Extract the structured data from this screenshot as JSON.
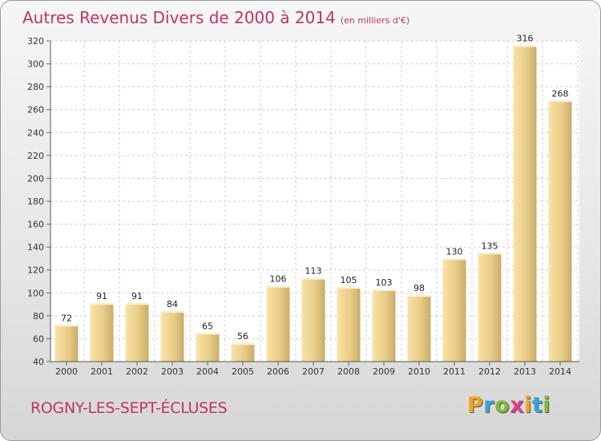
{
  "title": "Autres Revenus Divers de 2000 à 2014",
  "subtitle": "(en milliers d'€)",
  "commune": "ROGNY-LES-SEPT-ÉCLUSES",
  "logo": {
    "letters": [
      "P",
      "r",
      "o",
      "x",
      "i",
      "t",
      "i"
    ],
    "colors": [
      "#f0a21b",
      "#3aa4dc",
      "#82b93d",
      "#e63e8c",
      "#f0a21b",
      "#3aa4dc",
      "#82b93d"
    ]
  },
  "colors": {
    "title": "#c0336a",
    "bar_light": "#f7dfa1",
    "bar_dark": "#c5aa66"
  },
  "chart_data": {
    "type": "bar",
    "categories": [
      "2000",
      "2001",
      "2002",
      "2003",
      "2004",
      "2005",
      "2006",
      "2007",
      "2008",
      "2009",
      "2010",
      "2011",
      "2012",
      "2013",
      "2014"
    ],
    "values": [
      72,
      91,
      91,
      84,
      65,
      56,
      106,
      113,
      105,
      103,
      98,
      130,
      135,
      316,
      268
    ],
    "ylim": [
      40,
      320
    ],
    "yticks": [
      40,
      60,
      80,
      100,
      120,
      140,
      160,
      180,
      200,
      220,
      240,
      260,
      280,
      300,
      320
    ],
    "grid": true
  }
}
